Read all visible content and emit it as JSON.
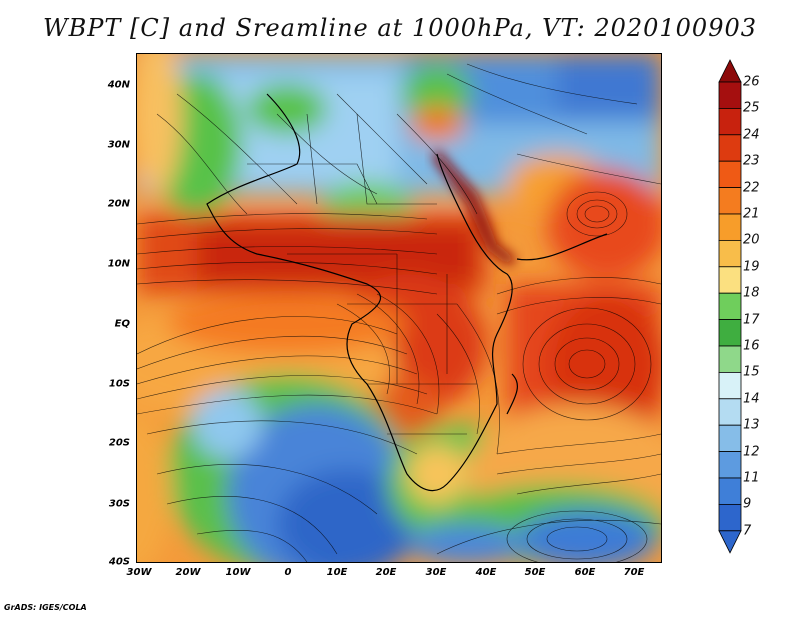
{
  "title": "WBPT [C] and Sreamline at 1000hPa, VT: 2020100903",
  "footer": "GrADS: IGES/COLA",
  "lat_labels": [
    "40N",
    "30N",
    "20N",
    "10N",
    "EQ",
    "10S",
    "20S",
    "30S",
    "40S"
  ],
  "lon_labels": [
    "30W",
    "20W",
    "10W",
    "0",
    "10E",
    "20E",
    "30E",
    "40E",
    "50E",
    "60E",
    "70E"
  ],
  "colorbar": {
    "labels": [
      "26",
      "25",
      "24",
      "23",
      "22",
      "21",
      "20",
      "19",
      "18",
      "17",
      "16",
      "15",
      "14",
      "13",
      "12",
      "11",
      "9",
      "7"
    ],
    "colors": [
      "#a50f0f",
      "#c8220e",
      "#dd3b10",
      "#ef5a15",
      "#f47c1f",
      "#f79d2a",
      "#f8bd4a",
      "#fbe080",
      "#6fce5c",
      "#3fae40",
      "#8fd88a",
      "#d8f2f8",
      "#b4dcf2",
      "#86bde8",
      "#5d9be0",
      "#3f7fd8",
      "#2d66cc"
    ],
    "arrow_top": "#8c0a0a",
    "arrow_bottom": "#2d66cc"
  }
}
